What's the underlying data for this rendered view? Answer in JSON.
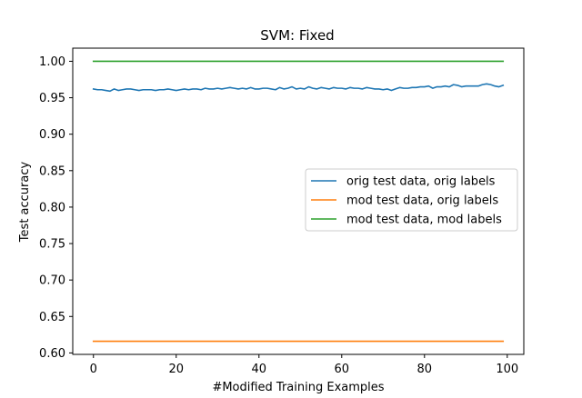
{
  "chart_data": {
    "type": "line",
    "title": "SVM: Fixed",
    "xlabel": "#Modified Training Examples",
    "ylabel": "Test accuracy",
    "xlim": [
      -5,
      104
    ],
    "ylim": [
      0.598,
      1.018
    ],
    "xticks": [
      0,
      20,
      40,
      60,
      80,
      100
    ],
    "yticks": [
      0.6,
      0.65,
      0.7,
      0.75,
      0.8,
      0.85,
      0.9,
      0.95,
      1.0
    ],
    "ytick_labels": [
      "0.60",
      "0.65",
      "0.70",
      "0.75",
      "0.80",
      "0.85",
      "0.90",
      "0.95",
      "1.00"
    ],
    "xtick_labels": [
      "0",
      "20",
      "40",
      "60",
      "80",
      "100"
    ],
    "grid": false,
    "legend_position": "center-right",
    "series": [
      {
        "name": "orig test data, orig labels",
        "color": "#1f77b4",
        "x_start": 0,
        "x_step": 1,
        "values": [
          0.962,
          0.961,
          0.961,
          0.96,
          0.959,
          0.962,
          0.96,
          0.961,
          0.962,
          0.962,
          0.961,
          0.96,
          0.961,
          0.961,
          0.961,
          0.96,
          0.961,
          0.961,
          0.962,
          0.961,
          0.96,
          0.961,
          0.962,
          0.961,
          0.962,
          0.962,
          0.961,
          0.963,
          0.962,
          0.962,
          0.963,
          0.962,
          0.963,
          0.964,
          0.963,
          0.962,
          0.963,
          0.962,
          0.964,
          0.962,
          0.962,
          0.963,
          0.963,
          0.962,
          0.961,
          0.964,
          0.962,
          0.963,
          0.965,
          0.962,
          0.963,
          0.962,
          0.965,
          0.963,
          0.962,
          0.964,
          0.963,
          0.962,
          0.964,
          0.963,
          0.963,
          0.962,
          0.964,
          0.963,
          0.963,
          0.962,
          0.964,
          0.963,
          0.962,
          0.962,
          0.961,
          0.962,
          0.96,
          0.962,
          0.964,
          0.963,
          0.963,
          0.964,
          0.964,
          0.965,
          0.965,
          0.966,
          0.963,
          0.965,
          0.965,
          0.966,
          0.965,
          0.968,
          0.967,
          0.965,
          0.966,
          0.966,
          0.966,
          0.966,
          0.968,
          0.969,
          0.968,
          0.966,
          0.965,
          0.967
        ]
      },
      {
        "name": "mod test data, orig labels",
        "color": "#ff7f0e",
        "x_start": 0,
        "x_step": 1,
        "constant": 0.616,
        "count": 100
      },
      {
        "name": "mod test data, mod labels",
        "color": "#2ca02c",
        "x_start": 0,
        "x_step": 1,
        "constant": 1.0,
        "count": 100
      }
    ]
  }
}
